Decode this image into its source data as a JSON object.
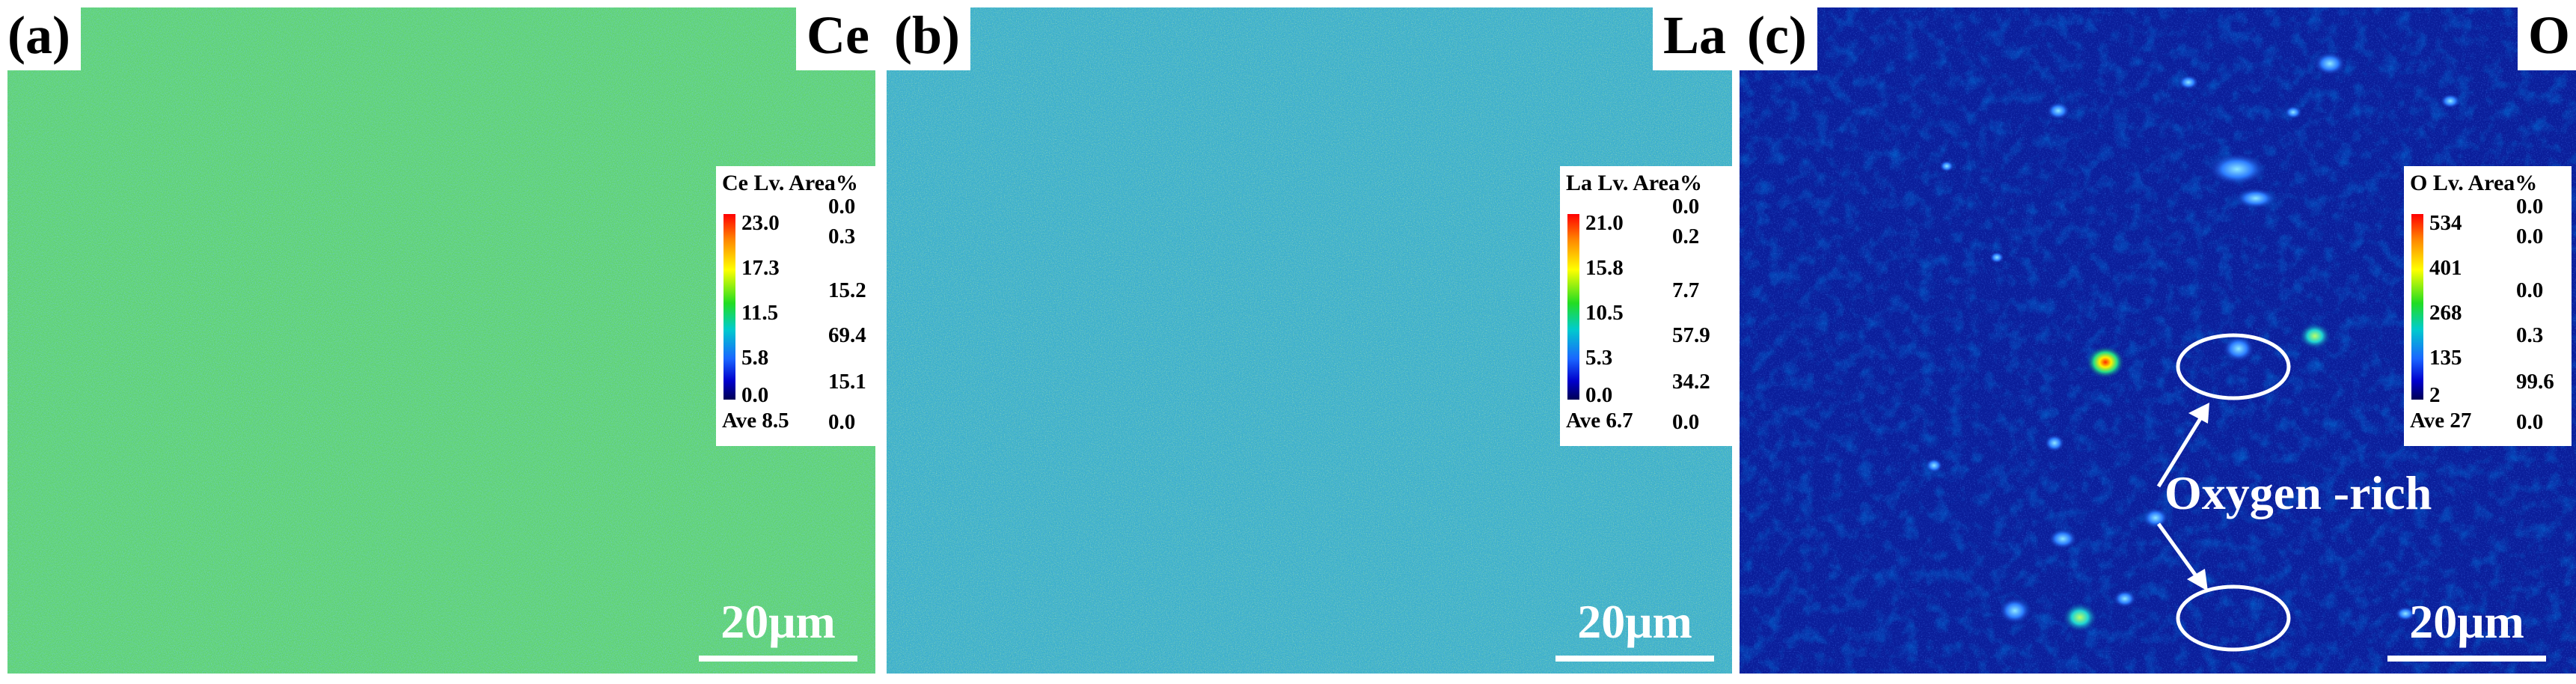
{
  "panels": [
    {
      "label": "(a)",
      "element": "Ce",
      "legend": {
        "header": "Ce Lv. Area%",
        "levels": [
          "23.0",
          "17.3",
          "11.5",
          "5.8",
          "0.0"
        ],
        "areas": [
          "0.0",
          "0.3",
          "15.2",
          "69.4",
          "15.1",
          "0.0"
        ],
        "average": "Ave 8.5"
      },
      "scale_bar": "20μm",
      "map_colors": {
        "base": "#5fcf72",
        "mix": [
          "#3aa7d8",
          "#8fe043",
          "#2e8be0",
          "#b6ea38",
          "#48c0b0"
        ]
      }
    },
    {
      "label": "(b)",
      "element": "La",
      "legend": {
        "header": "La Lv. Area%",
        "levels": [
          "21.0",
          "15.8",
          "10.5",
          "5.3",
          "0.0"
        ],
        "areas": [
          "0.0",
          "0.2",
          "7.7",
          "57.9",
          "34.2",
          "0.0"
        ],
        "average": "Ave 6.7"
      },
      "scale_bar": "20μm",
      "map_colors": {
        "base": "#3ab0c6",
        "mix": [
          "#2e7fe0",
          "#5cd07a",
          "#1f5fd8",
          "#7fdc55",
          "#2fa0e0"
        ]
      }
    },
    {
      "label": "(c)",
      "element": "O",
      "legend": {
        "header": "O  Lv. Area%",
        "levels": [
          "534",
          "401",
          "268",
          "135",
          "2"
        ],
        "areas": [
          "0.0",
          "0.0",
          "0.0",
          "0.3",
          "99.6",
          "0.0"
        ],
        "average": "Ave 27"
      },
      "scale_bar": "20μm",
      "annotation": "Oxygen -rich",
      "map_colors": {
        "base": "#0a1e9a",
        "mix": [
          "#0b2bb8",
          "#061677",
          "#1236c8",
          "#040f5c"
        ]
      }
    }
  ]
}
